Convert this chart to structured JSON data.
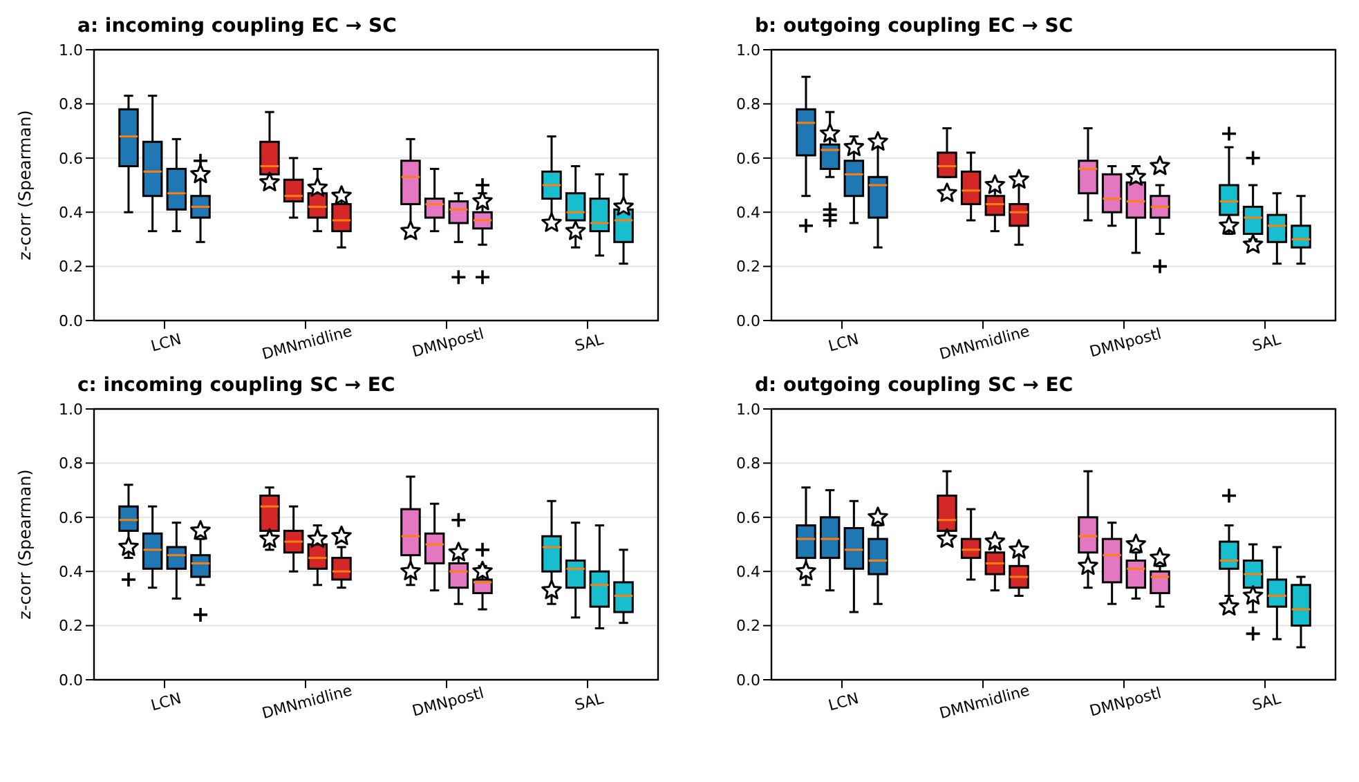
{
  "chart_data": [
    {
      "type": "box",
      "title": "a: incoming coupling EC → SC",
      "ylabel": "z-corr (Spearman)",
      "categories": [
        "LCN",
        "DMNmidline",
        "DMNpostl",
        "SAL"
      ],
      "ylim": [
        0,
        1
      ],
      "yticks": [
        {
          "value": 0,
          "label": "0.0"
        },
        {
          "value": 0.2,
          "label": "0.2"
        },
        {
          "value": 0.4,
          "label": "0.4"
        },
        {
          "value": 0.6,
          "label": "0.6"
        },
        {
          "value": 0.8,
          "label": "0.8"
        },
        {
          "value": 1,
          "label": "1.0"
        }
      ],
      "grid": "y",
      "series": [
        {
          "type": "box",
          "colors": [
            "#1f77b4",
            "#d62728",
            "#e377c2",
            "#17becf"
          ],
          "boxes": [
            {
              "low": 0.4,
              "q1": 0.57,
              "median": 0.68,
              "q3": 0.78,
              "high": 0.83
            },
            {
              "low": 0.54,
              "q1": 0.54,
              "median": 0.57,
              "q3": 0.66,
              "high": 0.77
            },
            {
              "low": 0.31,
              "q1": 0.43,
              "median": 0.53,
              "q3": 0.59,
              "high": 0.67
            },
            {
              "low": 0.37,
              "q1": 0.45,
              "median": 0.5,
              "q3": 0.55,
              "high": 0.68
            }
          ]
        },
        {
          "type": "box",
          "colors": [
            "#1f77b4",
            "#d62728",
            "#e377c2",
            "#17becf"
          ],
          "boxes": [
            {
              "low": 0.33,
              "q1": 0.46,
              "median": 0.55,
              "q3": 0.66,
              "high": 0.83
            },
            {
              "low": 0.38,
              "q1": 0.44,
              "median": 0.46,
              "q3": 0.52,
              "high": 0.6
            },
            {
              "low": 0.33,
              "q1": 0.38,
              "median": 0.43,
              "q3": 0.45,
              "high": 0.56
            },
            {
              "low": 0.27,
              "q1": 0.37,
              "median": 0.4,
              "q3": 0.47,
              "high": 0.57
            }
          ]
        },
        {
          "type": "box",
          "colors": [
            "#1f77b4",
            "#d62728",
            "#e377c2",
            "#17becf"
          ],
          "boxes": [
            {
              "low": 0.33,
              "q1": 0.41,
              "median": 0.47,
              "q3": 0.56,
              "high": 0.67
            },
            {
              "low": 0.33,
              "q1": 0.38,
              "median": 0.42,
              "q3": 0.47,
              "high": 0.56
            },
            {
              "low": 0.29,
              "q1": 0.36,
              "median": 0.41,
              "q3": 0.44,
              "high": 0.47,
              "outliers": [
                0.16
              ]
            },
            {
              "low": 0.24,
              "q1": 0.33,
              "median": 0.36,
              "q3": 0.45,
              "high": 0.54
            }
          ]
        },
        {
          "type": "box",
          "colors": [
            "#1f77b4",
            "#d62728",
            "#e377c2",
            "#17becf"
          ],
          "boxes": [
            {
              "low": 0.29,
              "q1": 0.38,
              "median": 0.42,
              "q3": 0.46,
              "high": 0.52,
              "outliers": [
                0.59
              ]
            },
            {
              "low": 0.27,
              "q1": 0.33,
              "median": 0.37,
              "q3": 0.43,
              "high": 0.45
            },
            {
              "low": 0.28,
              "q1": 0.34,
              "median": 0.37,
              "q3": 0.4,
              "high": 0.47,
              "outliers": [
                0.5,
                0.16
              ]
            },
            {
              "low": 0.21,
              "q1": 0.29,
              "median": 0.37,
              "q3": 0.41,
              "high": 0.54
            }
          ]
        },
        {
          "type": "scatter",
          "marker": "star",
          "color": "#ffffff",
          "values": [
            null,
            0.51,
            0.33,
            0.36
          ]
        },
        {
          "type": "scatter",
          "marker": "star",
          "color": "#ffffff",
          "values": [
            null,
            null,
            null,
            0.33
          ]
        },
        {
          "type": "scatter",
          "marker": "star",
          "color": "#ffffff",
          "values": [
            null,
            0.49,
            null,
            null
          ]
        },
        {
          "type": "scatter",
          "marker": "star",
          "color": "#ffffff",
          "values": [
            0.54,
            0.46,
            0.44,
            0.42
          ]
        }
      ]
    },
    {
      "type": "box",
      "title": "b: outgoing coupling EC → SC",
      "categories": [
        "LCN",
        "DMNmidline",
        "DMNpostl",
        "SAL"
      ],
      "ylim": [
        0,
        1
      ],
      "yticks": [
        {
          "value": 0,
          "label": "0.0"
        },
        {
          "value": 0.2,
          "label": "0.2"
        },
        {
          "value": 0.4,
          "label": "0.4"
        },
        {
          "value": 0.6,
          "label": "0.6"
        },
        {
          "value": 0.8,
          "label": "0.8"
        },
        {
          "value": 1,
          "label": "1.0"
        }
      ],
      "grid": "y",
      "series": [
        {
          "type": "box",
          "colors": [
            "#1f77b4",
            "#d62728",
            "#e377c2",
            "#17becf"
          ],
          "boxes": [
            {
              "low": 0.46,
              "q1": 0.61,
              "median": 0.73,
              "q3": 0.78,
              "high": 0.9,
              "outliers": [
                0.35
              ]
            },
            {
              "low": 0.53,
              "q1": 0.53,
              "median": 0.57,
              "q3": 0.62,
              "high": 0.71
            },
            {
              "low": 0.37,
              "q1": 0.47,
              "median": 0.56,
              "q3": 0.59,
              "high": 0.71
            },
            {
              "low": 0.32,
              "q1": 0.39,
              "median": 0.44,
              "q3": 0.5,
              "high": 0.64,
              "outliers": [
                0.69
              ]
            }
          ]
        },
        {
          "type": "box",
          "colors": [
            "#1f77b4",
            "#d62728",
            "#e377c2",
            "#17becf"
          ],
          "boxes": [
            {
              "low": 0.53,
              "q1": 0.56,
              "median": 0.63,
              "q3": 0.65,
              "high": 0.77,
              "outliers": [
                0.41,
                0.39,
                0.37
              ]
            },
            {
              "low": 0.37,
              "q1": 0.43,
              "median": 0.48,
              "q3": 0.55,
              "high": 0.62
            },
            {
              "low": 0.35,
              "q1": 0.4,
              "median": 0.45,
              "q3": 0.54,
              "high": 0.57
            },
            {
              "low": 0.3,
              "q1": 0.32,
              "median": 0.38,
              "q3": 0.42,
              "high": 0.5,
              "outliers": [
                0.6
              ]
            }
          ]
        },
        {
          "type": "box",
          "colors": [
            "#1f77b4",
            "#d62728",
            "#e377c2",
            "#17becf"
          ],
          "boxes": [
            {
              "low": 0.36,
              "q1": 0.46,
              "median": 0.54,
              "q3": 0.59,
              "high": 0.68
            },
            {
              "low": 0.33,
              "q1": 0.39,
              "median": 0.43,
              "q3": 0.46,
              "high": 0.48
            },
            {
              "low": 0.25,
              "q1": 0.38,
              "median": 0.44,
              "q3": 0.51,
              "high": 0.57
            },
            {
              "low": 0.21,
              "q1": 0.29,
              "median": 0.35,
              "q3": 0.39,
              "high": 0.47
            }
          ]
        },
        {
          "type": "box",
          "colors": [
            "#1f77b4",
            "#d62728",
            "#e377c2",
            "#17becf"
          ],
          "boxes": [
            {
              "low": 0.27,
              "q1": 0.38,
              "median": 0.5,
              "q3": 0.53,
              "high": 0.64
            },
            {
              "low": 0.28,
              "q1": 0.35,
              "median": 0.4,
              "q3": 0.43,
              "high": 0.5
            },
            {
              "low": 0.32,
              "q1": 0.38,
              "median": 0.42,
              "q3": 0.46,
              "high": 0.5,
              "outliers": [
                0.2
              ]
            },
            {
              "low": 0.21,
              "q1": 0.27,
              "median": 0.3,
              "q3": 0.35,
              "high": 0.46
            }
          ]
        },
        {
          "type": "scatter",
          "marker": "star",
          "color": "#ffffff",
          "values": [
            null,
            0.47,
            null,
            0.35
          ]
        },
        {
          "type": "scatter",
          "marker": "star",
          "color": "#ffffff",
          "values": [
            0.69,
            null,
            null,
            0.28
          ]
        },
        {
          "type": "scatter",
          "marker": "star",
          "color": "#ffffff",
          "values": [
            0.64,
            0.5,
            0.53,
            null
          ]
        },
        {
          "type": "scatter",
          "marker": "star",
          "color": "#ffffff",
          "values": [
            0.66,
            0.52,
            0.57,
            null
          ]
        }
      ]
    },
    {
      "type": "box",
      "title": "c: incoming coupling SC → EC",
      "ylabel": "z-corr (Spearman)",
      "categories": [
        "LCN",
        "DMNmidline",
        "DMNpostl",
        "SAL"
      ],
      "ylim": [
        0,
        1
      ],
      "yticks": [
        {
          "value": 0,
          "label": "0.0"
        },
        {
          "value": 0.2,
          "label": "0.2"
        },
        {
          "value": 0.4,
          "label": "0.4"
        },
        {
          "value": 0.6,
          "label": "0.6"
        },
        {
          "value": 0.8,
          "label": "0.8"
        },
        {
          "value": 1,
          "label": "1.0"
        }
      ],
      "grid": "y",
      "series": [
        {
          "type": "box",
          "colors": [
            "#1f77b4",
            "#d62728",
            "#e377c2",
            "#17becf"
          ],
          "boxes": [
            {
              "low": 0.45,
              "q1": 0.55,
              "median": 0.59,
              "q3": 0.64,
              "high": 0.72,
              "outliers": [
                0.37
              ]
            },
            {
              "low": 0.48,
              "q1": 0.55,
              "median": 0.64,
              "q3": 0.68,
              "high": 0.71
            },
            {
              "low": 0.35,
              "q1": 0.46,
              "median": 0.53,
              "q3": 0.63,
              "high": 0.75
            },
            {
              "low": 0.28,
              "q1": 0.4,
              "median": 0.49,
              "q3": 0.53,
              "high": 0.66
            }
          ]
        },
        {
          "type": "box",
          "colors": [
            "#1f77b4",
            "#d62728",
            "#e377c2",
            "#17becf"
          ],
          "boxes": [
            {
              "low": 0.34,
              "q1": 0.41,
              "median": 0.48,
              "q3": 0.54,
              "high": 0.64
            },
            {
              "low": 0.4,
              "q1": 0.47,
              "median": 0.51,
              "q3": 0.55,
              "high": 0.64
            },
            {
              "low": 0.33,
              "q1": 0.43,
              "median": 0.5,
              "q3": 0.54,
              "high": 0.65
            },
            {
              "low": 0.23,
              "q1": 0.34,
              "median": 0.41,
              "q3": 0.44,
              "high": 0.58
            }
          ]
        },
        {
          "type": "box",
          "colors": [
            "#1f77b4",
            "#d62728",
            "#e377c2",
            "#17becf"
          ],
          "boxes": [
            {
              "low": 0.3,
              "q1": 0.41,
              "median": 0.46,
              "q3": 0.49,
              "high": 0.58
            },
            {
              "low": 0.35,
              "q1": 0.41,
              "median": 0.45,
              "q3": 0.5,
              "high": 0.57
            },
            {
              "low": 0.28,
              "q1": 0.34,
              "median": 0.4,
              "q3": 0.43,
              "high": 0.45,
              "outliers": [
                0.59
              ]
            },
            {
              "low": 0.19,
              "q1": 0.27,
              "median": 0.35,
              "q3": 0.4,
              "high": 0.57
            }
          ]
        },
        {
          "type": "box",
          "colors": [
            "#1f77b4",
            "#d62728",
            "#e377c2",
            "#17becf"
          ],
          "boxes": [
            {
              "low": 0.35,
              "q1": 0.38,
              "median": 0.43,
              "q3": 0.46,
              "high": 0.52,
              "outliers": [
                0.24
              ]
            },
            {
              "low": 0.34,
              "q1": 0.37,
              "median": 0.4,
              "q3": 0.45,
              "high": 0.49
            },
            {
              "low": 0.26,
              "q1": 0.32,
              "median": 0.36,
              "q3": 0.37,
              "high": 0.42,
              "outliers": [
                0.48
              ]
            },
            {
              "low": 0.21,
              "q1": 0.25,
              "median": 0.31,
              "q3": 0.36,
              "high": 0.48
            }
          ]
        },
        {
          "type": "scatter",
          "marker": "star",
          "color": "#ffffff",
          "values": [
            0.49,
            0.52,
            0.4,
            0.33
          ]
        },
        {
          "type": "scatter",
          "marker": "star",
          "color": "#ffffff",
          "values": [
            null,
            null,
            null,
            null
          ]
        },
        {
          "type": "scatter",
          "marker": "star",
          "color": "#ffffff",
          "values": [
            null,
            0.52,
            0.47,
            null
          ]
        },
        {
          "type": "scatter",
          "marker": "star",
          "color": "#ffffff",
          "values": [
            0.55,
            0.53,
            0.4,
            null
          ]
        }
      ]
    },
    {
      "type": "box",
      "title": "d: outgoing coupling SC → EC",
      "categories": [
        "LCN",
        "DMNmidline",
        "DMNpostl",
        "SAL"
      ],
      "ylim": [
        0,
        1
      ],
      "yticks": [
        {
          "value": 0,
          "label": "0.0"
        },
        {
          "value": 0.2,
          "label": "0.2"
        },
        {
          "value": 0.4,
          "label": "0.4"
        },
        {
          "value": 0.6,
          "label": "0.6"
        },
        {
          "value": 0.8,
          "label": "0.8"
        },
        {
          "value": 1,
          "label": "1.0"
        }
      ],
      "grid": "y",
      "series": [
        {
          "type": "box",
          "colors": [
            "#1f77b4",
            "#d62728",
            "#e377c2",
            "#17becf"
          ],
          "boxes": [
            {
              "low": 0.35,
              "q1": 0.45,
              "median": 0.52,
              "q3": 0.57,
              "high": 0.71
            },
            {
              "low": 0.55,
              "q1": 0.55,
              "median": 0.59,
              "q3": 0.68,
              "high": 0.77
            },
            {
              "low": 0.34,
              "q1": 0.47,
              "median": 0.53,
              "q3": 0.6,
              "high": 0.77
            },
            {
              "low": 0.31,
              "q1": 0.41,
              "median": 0.44,
              "q3": 0.51,
              "high": 0.57,
              "outliers": [
                0.68
              ]
            }
          ]
        },
        {
          "type": "box",
          "colors": [
            "#1f77b4",
            "#d62728",
            "#e377c2",
            "#17becf"
          ],
          "boxes": [
            {
              "low": 0.33,
              "q1": 0.45,
              "median": 0.52,
              "q3": 0.6,
              "high": 0.7
            },
            {
              "low": 0.37,
              "q1": 0.45,
              "median": 0.48,
              "q3": 0.52,
              "high": 0.63
            },
            {
              "low": 0.28,
              "q1": 0.36,
              "median": 0.46,
              "q3": 0.52,
              "high": 0.58
            },
            {
              "low": 0.25,
              "q1": 0.34,
              "median": 0.39,
              "q3": 0.44,
              "high": 0.5,
              "outliers": [
                0.17
              ]
            }
          ]
        },
        {
          "type": "box",
          "colors": [
            "#1f77b4",
            "#d62728",
            "#e377c2",
            "#17becf"
          ],
          "boxes": [
            {
              "low": 0.25,
              "q1": 0.41,
              "median": 0.48,
              "q3": 0.56,
              "high": 0.66
            },
            {
              "low": 0.33,
              "q1": 0.39,
              "median": 0.43,
              "q3": 0.47,
              "high": 0.52
            },
            {
              "low": 0.3,
              "q1": 0.34,
              "median": 0.41,
              "q3": 0.44,
              "high": 0.47
            },
            {
              "low": 0.15,
              "q1": 0.27,
              "median": 0.31,
              "q3": 0.37,
              "high": 0.49
            }
          ]
        },
        {
          "type": "box",
          "colors": [
            "#1f77b4",
            "#d62728",
            "#e377c2",
            "#17becf"
          ],
          "boxes": [
            {
              "low": 0.28,
              "q1": 0.39,
              "median": 0.44,
              "q3": 0.52,
              "high": 0.57
            },
            {
              "low": 0.31,
              "q1": 0.34,
              "median": 0.38,
              "q3": 0.42,
              "high": 0.46
            },
            {
              "low": 0.27,
              "q1": 0.32,
              "median": 0.38,
              "q3": 0.4,
              "high": 0.42
            },
            {
              "low": 0.12,
              "q1": 0.2,
              "median": 0.26,
              "q3": 0.35,
              "high": 0.38
            }
          ]
        },
        {
          "type": "scatter",
          "marker": "star",
          "color": "#ffffff",
          "values": [
            0.4,
            0.52,
            0.42,
            0.27
          ]
        },
        {
          "type": "scatter",
          "marker": "star",
          "color": "#ffffff",
          "values": [
            null,
            null,
            null,
            0.31
          ]
        },
        {
          "type": "scatter",
          "marker": "star",
          "color": "#ffffff",
          "values": [
            null,
            0.51,
            0.5,
            null
          ]
        },
        {
          "type": "scatter",
          "marker": "star",
          "color": "#ffffff",
          "values": [
            0.6,
            0.48,
            0.45,
            null
          ]
        }
      ]
    }
  ]
}
